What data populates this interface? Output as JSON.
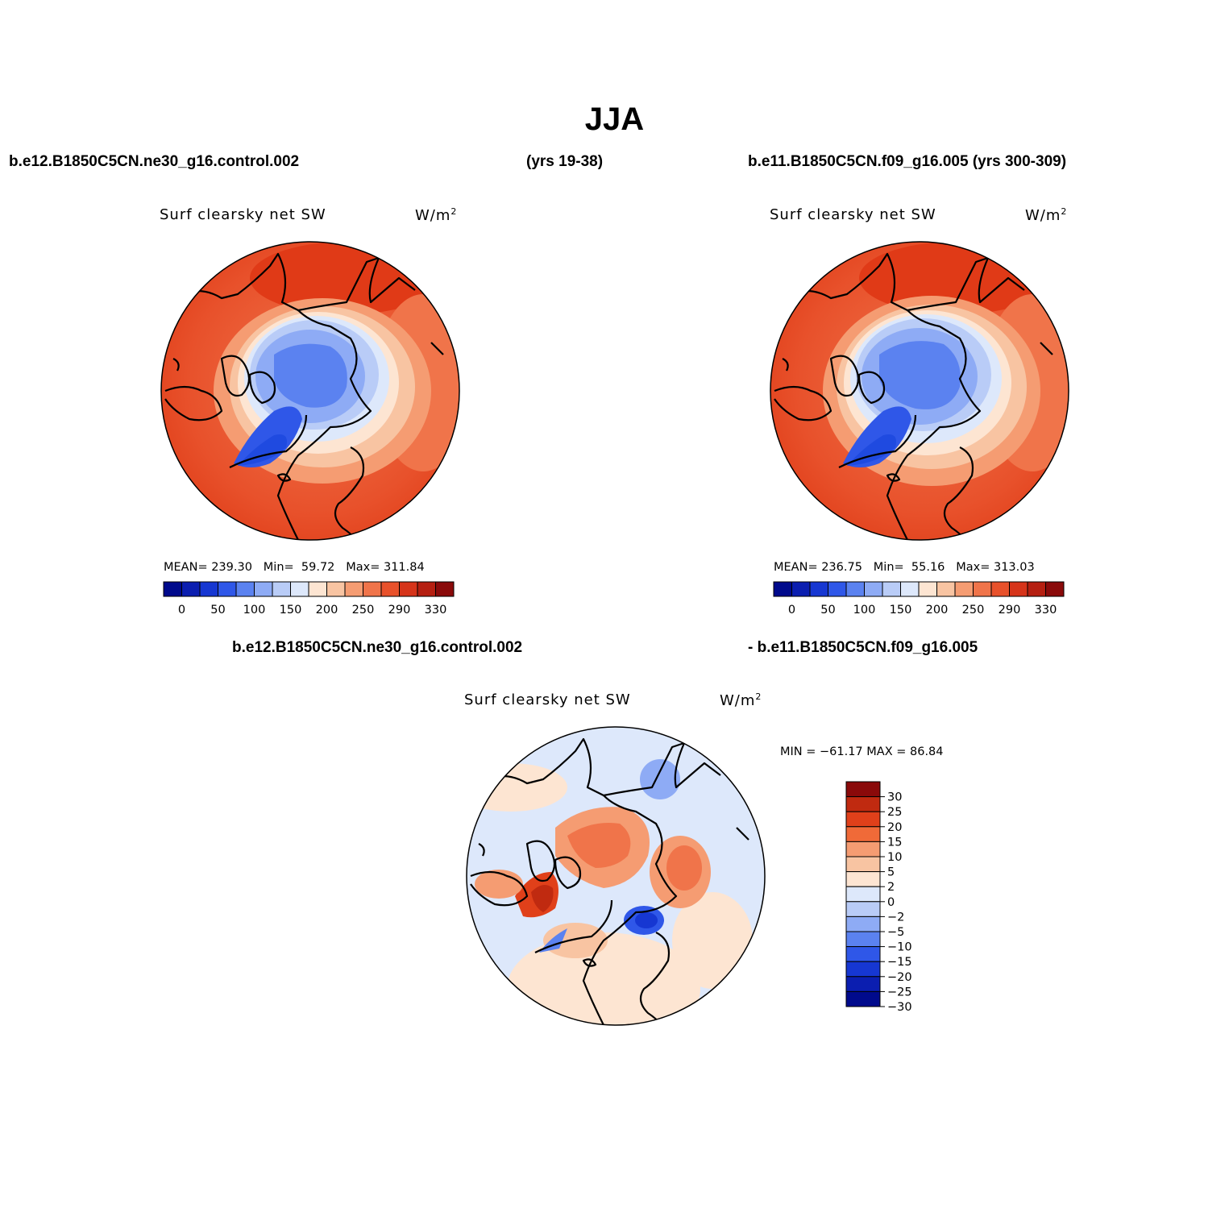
{
  "figure": {
    "title": "JJA",
    "case_top_left": "b.e12.B1850C5CN.ne30_g16.control.002",
    "years_top_left": "(yrs 19-38)",
    "case_top_right": "b.e11.B1850C5CN.f09_g16.005 (yrs 300-309)",
    "diff_case_a": "b.e12.B1850C5CN.ne30_g16.control.002",
    "diff_case_b": "- b.e11.B1850C5CN.f09_g16.005"
  },
  "panels": [
    {
      "variable": "Surf clearsky net SW",
      "units_base": "W/m",
      "units_sup": "2",
      "mean_label": "MEAN=",
      "mean_value": "239.30",
      "min_label": "Min=",
      "min_value": "59.72",
      "max_label": "Max=",
      "max_value": "311.84"
    },
    {
      "variable": "Surf clearsky net SW",
      "units_base": "W/m",
      "units_sup": "2",
      "mean_label": "MEAN=",
      "mean_value": "236.75",
      "min_label": "Min=",
      "min_value": "55.16",
      "max_label": "Max=",
      "max_value": "313.03"
    },
    {
      "variable": "Surf clearsky net SW",
      "units_base": "W/m",
      "units_sup": "2",
      "range_text": "MIN = −61.17 MAX =  86.84"
    }
  ],
  "colorbar_abs": {
    "colors": [
      "#000a8c",
      "#0b1eb0",
      "#1637d2",
      "#2f57e8",
      "#5b82f0",
      "#8eabf5",
      "#b9ccf7",
      "#dde8fb",
      "#fde5d2",
      "#f8c4a2",
      "#f59c72",
      "#f0744a",
      "#e8512b",
      "#d6341a",
      "#b51f11",
      "#8a0a0a"
    ],
    "tick_labels": [
      "0",
      "50",
      "100",
      "150",
      "200",
      "250",
      "290",
      "330"
    ]
  },
  "colorbar_diff": {
    "colors": [
      "#8a0a0a",
      "#c02a10",
      "#e0401a",
      "#f06a38",
      "#f59c72",
      "#f8c4a2",
      "#fde5d2",
      "#dde8fb",
      "#b9ccf7",
      "#8eabf5",
      "#5b82f0",
      "#2f57e8",
      "#1637d2",
      "#0b1eb0",
      "#000a8c"
    ],
    "tick_labels": [
      "30",
      "25",
      "20",
      "15",
      "10",
      "5",
      "2",
      "0",
      "−2",
      "−5",
      "−10",
      "−15",
      "−20",
      "−25",
      "−30"
    ]
  }
}
